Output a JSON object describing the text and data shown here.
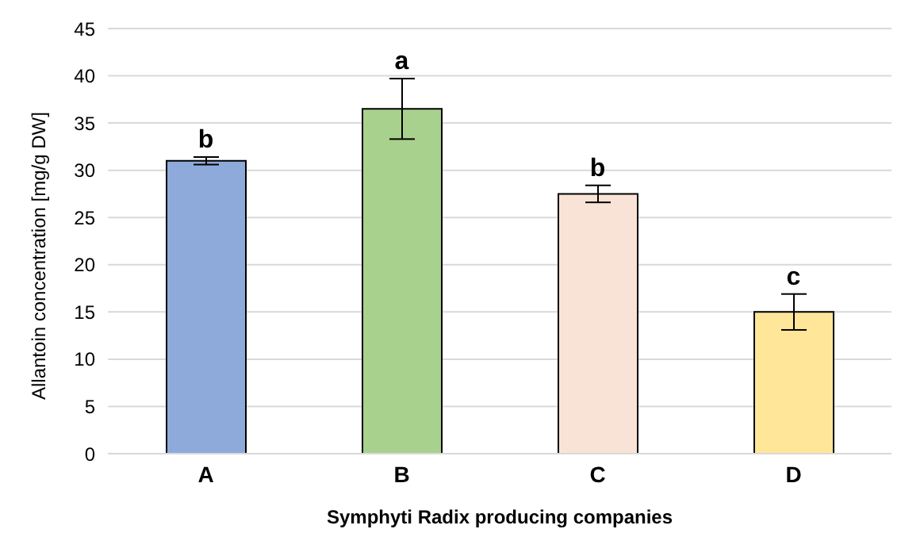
{
  "chart_data": {
    "type": "bar",
    "categories": [
      "A",
      "B",
      "C",
      "D"
    ],
    "values": [
      31,
      36.5,
      27.5,
      15
    ],
    "errors": [
      0.4,
      3.2,
      0.9,
      1.9
    ],
    "colors": [
      "#8eaadb",
      "#a9d18e",
      "#f8e3d6",
      "#ffe699"
    ],
    "ylim": [
      0,
      45
    ],
    "yticks": [
      0,
      5,
      10,
      15,
      20,
      25,
      30,
      35,
      40,
      45
    ],
    "grid": "y",
    "ylabel": "Allantoin concentration [mg/g DW]",
    "xlabel": "Symphyti Radix producing companies",
    "annotations": [
      {
        "text": "b",
        "x": "A",
        "y": 31.4
      },
      {
        "text": "a",
        "x": "B",
        "y": 39.7
      },
      {
        "text": "b",
        "x": "C",
        "y": 28.4
      },
      {
        "text": "c",
        "x": "D",
        "y": 16.9
      }
    ]
  }
}
